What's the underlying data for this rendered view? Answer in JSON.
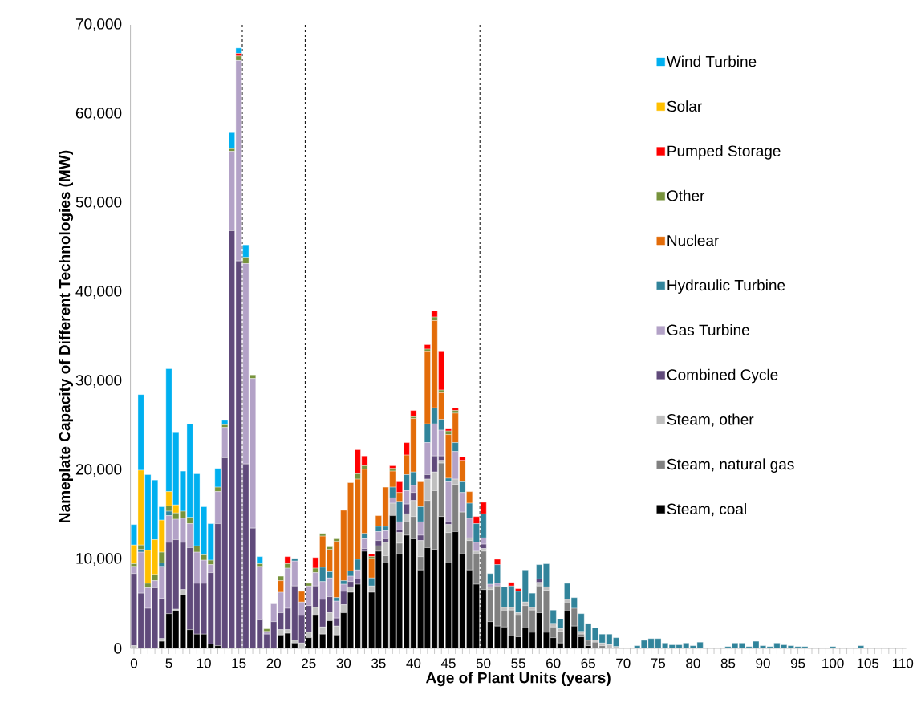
{
  "chart_data": {
    "type": "bar",
    "stacked": true,
    "xlabel": "Age of Plant Units (years)",
    "ylabel": "Nameplate Capacity of Different Technologies (MW)",
    "x": [
      0,
      1,
      2,
      3,
      4,
      5,
      6,
      7,
      8,
      9,
      10,
      11,
      12,
      13,
      14,
      15,
      16,
      17,
      18,
      19,
      20,
      21,
      22,
      23,
      24,
      25,
      26,
      27,
      28,
      29,
      30,
      31,
      32,
      33,
      34,
      35,
      36,
      37,
      38,
      39,
      40,
      41,
      42,
      43,
      44,
      45,
      46,
      47,
      48,
      49,
      50,
      51,
      52,
      53,
      54,
      55,
      56,
      57,
      58,
      59,
      60,
      61,
      62,
      63,
      64,
      65,
      66,
      67,
      68,
      69,
      70,
      71,
      72,
      73,
      74,
      75,
      76,
      77,
      78,
      79,
      80,
      81,
      82,
      83,
      84,
      85,
      86,
      87,
      88,
      89,
      90,
      91,
      92,
      93,
      94,
      95,
      96,
      97,
      98,
      99,
      100,
      101,
      102,
      103,
      104,
      105,
      106,
      107,
      108,
      109,
      110
    ],
    "xlim": [
      -0.5,
      110.5
    ],
    "xticks": [
      0,
      5,
      10,
      15,
      20,
      25,
      30,
      35,
      40,
      45,
      50,
      55,
      60,
      65,
      70,
      75,
      80,
      85,
      90,
      95,
      100,
      105,
      110
    ],
    "ylim": [
      0,
      70000
    ],
    "yticks": [
      0,
      {
        "value": 10000,
        "label": "10,000"
      },
      {
        "value": 20000,
        "label": "20,000"
      },
      {
        "value": 30000,
        "label": "30,000"
      },
      {
        "value": 40000,
        "label": "40,000"
      },
      {
        "value": 50000,
        "label": "50,000"
      },
      {
        "value": 60000,
        "label": "60,000"
      },
      {
        "value": 70000,
        "label": "70,000"
      }
    ],
    "legend": "top right",
    "ref_lines": [
      {
        "axis": "x",
        "value": 15.5,
        "color": "#000000",
        "line_style": "dashed"
      },
      {
        "axis": "x",
        "value": 24.5,
        "color": "#000000",
        "line_style": "dashed"
      },
      {
        "axis": "x",
        "value": 49.5,
        "color": "#000000",
        "line_style": "dashed"
      }
    ],
    "series": [
      {
        "name": "Steam, coal",
        "color": "#000000",
        "values": [
          0,
          0,
          0,
          0,
          800,
          3900,
          4200,
          6000,
          2100,
          1600,
          1600,
          500,
          300,
          0,
          0,
          0,
          0,
          0,
          0,
          0,
          0,
          1500,
          1700,
          600,
          0,
          1200,
          3700,
          1600,
          3100,
          1500,
          4000,
          6300,
          7200,
          10900,
          6300,
          10900,
          9600,
          14900,
          10600,
          12700,
          12300,
          8800,
          11300,
          11100,
          14800,
          9600,
          13100,
          10600,
          8800,
          7200,
          6600,
          3000,
          2500,
          2400,
          1400,
          1300,
          2300,
          1800,
          4000,
          1800,
          1200,
          600,
          4200,
          2500,
          1300,
          300,
          0,
          0,
          0,
          0,
          0,
          0,
          0,
          0,
          0,
          0,
          0,
          0,
          0,
          0,
          0,
          0,
          0,
          0,
          0,
          0,
          0,
          0,
          0,
          0,
          0,
          0,
          0,
          0,
          0,
          0,
          0,
          0,
          0,
          0,
          0,
          0,
          0,
          0,
          0,
          0,
          0,
          0,
          0,
          0,
          0
        ]
      },
      {
        "name": "Steam, natural gas",
        "color": "#808080",
        "values": [
          0,
          0,
          0,
          0,
          0,
          0,
          0,
          0,
          0,
          0,
          0,
          0,
          0,
          0,
          0,
          0,
          0,
          0,
          0,
          0,
          0,
          0,
          0,
          0,
          0,
          0,
          0,
          0,
          0,
          0,
          0,
          0,
          0,
          0,
          0,
          600,
          800,
          0,
          1200,
          1500,
          2500,
          1500,
          5300,
          6600,
          6000,
          3400,
          5300,
          4700,
          3300,
          3400,
          4300,
          3600,
          4500,
          1800,
          2900,
          2400,
          2500,
          2500,
          3000,
          4700,
          1200,
          1300,
          900,
          2000,
          300,
          600,
          700,
          300,
          0,
          0,
          0,
          0,
          0,
          0,
          0,
          0,
          0,
          0,
          0,
          0,
          0,
          0,
          0,
          0,
          0,
          0,
          0,
          0,
          0,
          0,
          0,
          0,
          0,
          0,
          0,
          0,
          0,
          0,
          0,
          0,
          0,
          0,
          0,
          0,
          0,
          0,
          0,
          0,
          0,
          0,
          0
        ]
      },
      {
        "name": "Steam, other",
        "color": "#bfbfbf",
        "values": [
          300,
          0,
          0,
          0,
          300,
          0,
          200,
          600,
          0,
          0,
          0,
          0,
          0,
          0,
          0,
          0,
          0,
          0,
          0,
          0,
          0,
          600,
          400,
          300,
          600,
          600,
          900,
          800,
          900,
          1000,
          900,
          600,
          0,
          0,
          700,
          0,
          1500,
          1400,
          1200,
          900,
          1800,
          1800,
          2400,
          2100,
          300,
          900,
          600,
          0,
          300,
          300,
          300,
          300,
          0,
          400,
          300,
          300,
          400,
          300,
          400,
          400,
          400,
          300,
          400,
          0,
          300,
          0,
          200,
          300,
          400,
          200,
          0,
          0,
          0,
          0,
          0,
          0,
          0,
          0,
          0,
          0,
          0,
          0,
          0,
          0,
          0,
          0,
          0,
          0,
          0,
          0,
          0,
          0,
          0,
          0,
          0,
          0,
          0,
          0,
          0,
          0,
          0,
          0,
          0,
          0,
          0,
          0,
          0,
          0,
          0,
          0,
          0
        ]
      },
      {
        "name": "Combined Cycle",
        "color": "#604a7b",
        "values": [
          8100,
          6200,
          4500,
          6800,
          4500,
          8000,
          7800,
          5300,
          9200,
          5700,
          5700,
          8000,
          13700,
          21400,
          46900,
          43500,
          20700,
          13500,
          3200,
          1600,
          3000,
          1900,
          2400,
          6100,
          3100,
          3000,
          2400,
          3100,
          1800,
          900,
          1500,
          600,
          600,
          300,
          0,
          600,
          400,
          0,
          300,
          1100,
          900,
          600,
          500,
          1800,
          500,
          300,
          0,
          0,
          0,
          0,
          500,
          0,
          0,
          0,
          0,
          0,
          0,
          0,
          400,
          0,
          0,
          0,
          0,
          0,
          0,
          0,
          0,
          0,
          0,
          0,
          0,
          0,
          0,
          0,
          0,
          0,
          0,
          0,
          0,
          0,
          0,
          0,
          0,
          0,
          0,
          0,
          0,
          0,
          0,
          0,
          0,
          0,
          0,
          0,
          0,
          0,
          0,
          0,
          0,
          0,
          0,
          0,
          0,
          0,
          0,
          0,
          0,
          0,
          0,
          0,
          0
        ]
      },
      {
        "name": "Gas Turbine",
        "color": "#b3a2c7",
        "values": [
          800,
          4600,
          2300,
          800,
          3600,
          3000,
          2300,
          2700,
          2700,
          3500,
          2600,
          900,
          3600,
          3400,
          8900,
          22500,
          22500,
          16800,
          6000,
          300,
          2000,
          2300,
          4500,
          2800,
          1500,
          2200,
          1500,
          2000,
          2100,
          1900,
          800,
          600,
          1000,
          1100,
          0,
          1000,
          900,
          600,
          900,
          1500,
          800,
          1500,
          3600,
          3600,
          2900,
          4500,
          3100,
          2200,
          2200,
          1000,
          700,
          300,
          300,
          0,
          0,
          0,
          0,
          0,
          0,
          0,
          0,
          0,
          0,
          0,
          0,
          0,
          0,
          0,
          0,
          0,
          0,
          0,
          0,
          0,
          0,
          0,
          0,
          0,
          0,
          0,
          0,
          0,
          0,
          0,
          0,
          0,
          0,
          0,
          0,
          0,
          0,
          0,
          0,
          0,
          0,
          0,
          0,
          0,
          0,
          0,
          0,
          0,
          0,
          0,
          0,
          0,
          0,
          0,
          0,
          0,
          0
        ]
      },
      {
        "name": "Hydraulic Turbine",
        "color": "#31849b",
        "values": [
          0,
          300,
          0,
          0,
          400,
          500,
          0,
          0,
          0,
          0,
          0,
          0,
          0,
          0,
          0,
          0,
          0,
          0,
          0,
          0,
          0,
          0,
          0,
          300,
          0,
          0,
          0,
          1600,
          700,
          400,
          400,
          600,
          1200,
          600,
          900,
          600,
          500,
          1200,
          2300,
          1800,
          1500,
          1700,
          2100,
          1800,
          1200,
          400,
          1000,
          1200,
          1700,
          2100,
          2700,
          1200,
          2100,
          2300,
          2400,
          2400,
          3600,
          1600,
          1600,
          2600,
          1500,
          1100,
          1800,
          1200,
          2000,
          1900,
          1400,
          1000,
          1200,
          1000,
          0,
          0,
          300,
          900,
          1100,
          1100,
          600,
          400,
          400,
          600,
          300,
          700,
          0,
          0,
          0,
          200,
          600,
          600,
          200,
          800,
          300,
          200,
          600,
          400,
          300,
          200,
          200,
          0,
          0,
          0,
          200,
          0,
          0,
          0,
          300,
          0,
          0,
          0,
          0,
          0,
          0
        ]
      },
      {
        "name": "Nuclear",
        "color": "#e36c09",
        "values": [
          0,
          0,
          0,
          0,
          0,
          0,
          0,
          0,
          0,
          0,
          0,
          0,
          0,
          0,
          0,
          0,
          0,
          0,
          0,
          0,
          0,
          1300,
          0,
          0,
          1200,
          0,
          0,
          3500,
          2500,
          6300,
          7900,
          9900,
          9000,
          7200,
          2200,
          1200,
          4400,
          1800,
          1000,
          2200,
          6000,
          2800,
          8100,
          9800,
          3000,
          4900,
          3300,
          2400,
          1300,
          0,
          0,
          0,
          0,
          0,
          0,
          0,
          0,
          0,
          0,
          0,
          0,
          0,
          0,
          0,
          0,
          0,
          0,
          0,
          0,
          0,
          0,
          0,
          0,
          0,
          0,
          0,
          0,
          0,
          0,
          0,
          0,
          0,
          0,
          0,
          0,
          0,
          0,
          0,
          0,
          0,
          0,
          0,
          0,
          0,
          0,
          0,
          0,
          0,
          0,
          0,
          0,
          0,
          0,
          0,
          0,
          0,
          0,
          0,
          0,
          0,
          0
        ]
      },
      {
        "name": "Other",
        "color": "#77933c",
        "values": [
          300,
          500,
          500,
          700,
          1200,
          600,
          700,
          800,
          700,
          700,
          600,
          500,
          500,
          300,
          300,
          500,
          700,
          400,
          300,
          300,
          0,
          500,
          500,
          0,
          0,
          300,
          500,
          300,
          300,
          300,
          0,
          0,
          600,
          400,
          200,
          0,
          0,
          300,
          0,
          0,
          200,
          0,
          300,
          400,
          300,
          400,
          300,
          0,
          0,
          0,
          0,
          0,
          0,
          0,
          0,
          0,
          0,
          0,
          0,
          0,
          0,
          0,
          0,
          0,
          0,
          0,
          0,
          0,
          0,
          0,
          0,
          0,
          0,
          0,
          0,
          0,
          0,
          0,
          0,
          0,
          0,
          0,
          0,
          0,
          0,
          0,
          0,
          0,
          0,
          0,
          0,
          0,
          0,
          0,
          0,
          0,
          0,
          0,
          0,
          0,
          0,
          0,
          0,
          0,
          0,
          0,
          0,
          0,
          0,
          0,
          0
        ]
      },
      {
        "name": "Pumped Storage",
        "color": "#ff0000",
        "values": [
          0,
          0,
          0,
          0,
          0,
          0,
          0,
          0,
          0,
          0,
          0,
          0,
          0,
          0,
          0,
          300,
          0,
          0,
          0,
          0,
          0,
          0,
          800,
          0,
          0,
          0,
          1200,
          0,
          0,
          0,
          0,
          0,
          2700,
          1100,
          300,
          0,
          0,
          300,
          1200,
          1400,
          700,
          0,
          500,
          700,
          4300,
          300,
          300,
          400,
          0,
          800,
          1300,
          0,
          600,
          0,
          400,
          300,
          0,
          0,
          0,
          0,
          0,
          0,
          0,
          0,
          0,
          0,
          0,
          0,
          0,
          0,
          0,
          0,
          0,
          0,
          0,
          0,
          0,
          0,
          0,
          0,
          0,
          0,
          0,
          0,
          0,
          0,
          0,
          0,
          0,
          0,
          0,
          0,
          0,
          0,
          0,
          0,
          0,
          0,
          0,
          0,
          0,
          0,
          0,
          0,
          0,
          0,
          0,
          0,
          0,
          0,
          0
        ]
      },
      {
        "name": "Solar",
        "color": "#ffc000",
        "values": [
          2100,
          8400,
          3700,
          3900,
          3600,
          1600,
          900,
          0,
          0,
          0,
          0,
          0,
          0,
          0,
          0,
          0,
          0,
          0,
          0,
          0,
          0,
          0,
          0,
          0,
          0,
          0,
          0,
          0,
          0,
          0,
          0,
          0,
          0,
          0,
          0,
          0,
          0,
          0,
          0,
          0,
          0,
          0,
          0,
          0,
          0,
          0,
          0,
          0,
          0,
          0,
          0,
          0,
          0,
          0,
          0,
          0,
          0,
          0,
          0,
          0,
          0,
          0,
          0,
          0,
          0,
          0,
          0,
          0,
          0,
          0,
          0,
          0,
          0,
          0,
          0,
          0,
          0,
          0,
          0,
          0,
          0,
          0,
          0,
          0,
          0,
          0,
          0,
          0,
          0,
          0,
          0,
          0,
          0,
          0,
          0,
          0,
          0,
          0,
          0,
          0,
          0,
          0,
          0,
          0,
          0,
          0,
          0,
          0,
          0,
          0,
          0
        ]
      },
      {
        "name": "Wind Turbine",
        "color": "#00b0f0",
        "values": [
          2300,
          8500,
          8500,
          6700,
          1500,
          13800,
          8200,
          4500,
          10500,
          8100,
          5400,
          4100,
          2100,
          500,
          1800,
          600,
          1400,
          0,
          800,
          0,
          0,
          0,
          0,
          0,
          0,
          0,
          0,
          0,
          0,
          0,
          0,
          0,
          0,
          0,
          0,
          0,
          0,
          0,
          0,
          0,
          0,
          0,
          0,
          0,
          0,
          0,
          0,
          0,
          0,
          0,
          0,
          0,
          0,
          0,
          0,
          0,
          0,
          0,
          0,
          0,
          0,
          0,
          0,
          0,
          0,
          0,
          0,
          0,
          0,
          0,
          0,
          0,
          0,
          0,
          0,
          0,
          0,
          0,
          0,
          0,
          0,
          0,
          0,
          0,
          0,
          0,
          0,
          0,
          0,
          0,
          0,
          0,
          0,
          0,
          0,
          0,
          0,
          0,
          0,
          0,
          0,
          0,
          0,
          0,
          0,
          0,
          0,
          0,
          0,
          0,
          0
        ]
      }
    ]
  }
}
